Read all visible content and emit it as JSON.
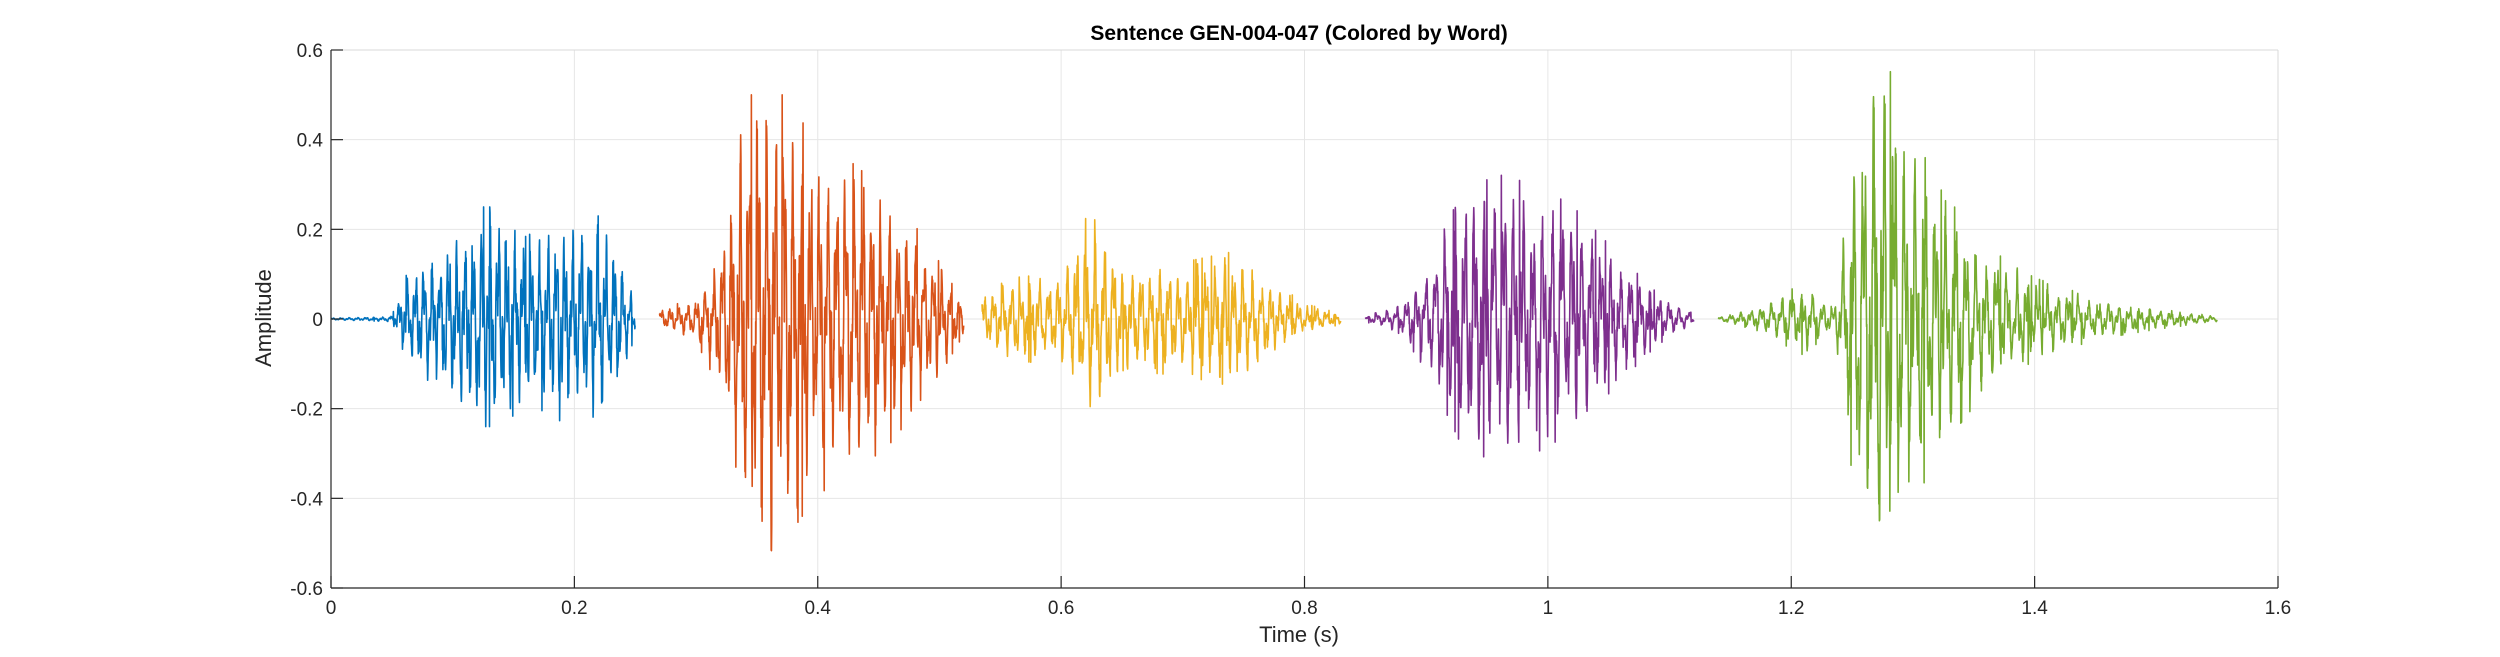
{
  "chart_data": {
    "type": "line",
    "title": "Sentence GEN-004-047 (Colored by Word)",
    "xlabel": "Time (s)",
    "ylabel": "Amplitude",
    "xlim": [
      0,
      1.6
    ],
    "ylim": [
      -0.6,
      0.6
    ],
    "xticks": [
      0,
      0.2,
      0.4,
      0.6,
      0.8,
      1,
      1.2,
      1.4,
      1.6
    ],
    "xtick_labels": [
      "0",
      "0.2",
      "0.4",
      "0.6",
      "0.8",
      "1",
      "1.2",
      "1.4",
      "1.6"
    ],
    "yticks": [
      -0.6,
      -0.4,
      -0.2,
      0,
      0.2,
      0.4,
      0.6
    ],
    "ytick_labels": [
      "-0.6",
      "-0.4",
      "-0.2",
      "0",
      "0.2",
      "0.4",
      "0.6"
    ],
    "grid": true,
    "legend": "none",
    "series": [
      {
        "color": "#0072BD",
        "x_range": [
          0.0,
          0.25
        ],
        "envelope": [
          [
            0.0,
            0.002
          ],
          [
            0.05,
            0.005
          ],
          [
            0.06,
            0.08
          ],
          [
            0.08,
            0.13
          ],
          [
            0.11,
            0.18
          ],
          [
            0.13,
            0.24
          ],
          [
            0.16,
            0.16
          ],
          [
            0.19,
            0.2
          ],
          [
            0.22,
            0.2
          ],
          [
            0.235,
            0.15
          ],
          [
            0.25,
            0.03
          ]
        ],
        "peak_max": 0.25,
        "peak_min": -0.24
      },
      {
        "color": "#D95319",
        "x_range": [
          0.27,
          0.52
        ],
        "envelope": [
          [
            0.27,
            0.02
          ],
          [
            0.3,
            0.04
          ],
          [
            0.32,
            0.15
          ],
          [
            0.34,
            0.42
          ],
          [
            0.355,
            0.5
          ],
          [
            0.37,
            0.44
          ],
          [
            0.4,
            0.34
          ],
          [
            0.43,
            0.3
          ],
          [
            0.46,
            0.24
          ],
          [
            0.49,
            0.15
          ],
          [
            0.51,
            0.07
          ],
          [
            0.52,
            0.03
          ]
        ],
        "peak_max": 0.5,
        "peak_min": -0.57
      },
      {
        "color": "#EDB120",
        "x_range": [
          0.535,
          0.83
        ],
        "envelope": [
          [
            0.535,
            0.05
          ],
          [
            0.56,
            0.08
          ],
          [
            0.6,
            0.09
          ],
          [
            0.625,
            0.22
          ],
          [
            0.65,
            0.1
          ],
          [
            0.7,
            0.11
          ],
          [
            0.74,
            0.13
          ],
          [
            0.77,
            0.08
          ],
          [
            0.8,
            0.03
          ],
          [
            0.83,
            0.01
          ]
        ],
        "peak_max": 0.24,
        "peak_min": -0.27
      },
      {
        "color": "#7E2F8E",
        "x_range": [
          0.85,
          1.12
        ],
        "envelope": [
          [
            0.85,
            0.005
          ],
          [
            0.88,
            0.03
          ],
          [
            0.9,
            0.1
          ],
          [
            0.93,
            0.25
          ],
          [
            0.96,
            0.28
          ],
          [
            0.99,
            0.26
          ],
          [
            1.02,
            0.22
          ],
          [
            1.06,
            0.12
          ],
          [
            1.09,
            0.05
          ],
          [
            1.12,
            0.01
          ]
        ],
        "peak_max": 0.33,
        "peak_min": -0.35
      },
      {
        "color": "#77AC30",
        "x_range": [
          1.14,
          1.55
        ],
        "envelope": [
          [
            1.14,
            0.005
          ],
          [
            1.17,
            0.02
          ],
          [
            1.21,
            0.07
          ],
          [
            1.235,
            0.02
          ],
          [
            1.25,
            0.3
          ],
          [
            1.27,
            0.56
          ],
          [
            1.29,
            0.42
          ],
          [
            1.32,
            0.26
          ],
          [
            1.36,
            0.14
          ],
          [
            1.4,
            0.08
          ],
          [
            1.45,
            0.04
          ],
          [
            1.5,
            0.02
          ],
          [
            1.55,
            0.005
          ]
        ],
        "peak_max": 0.6,
        "peak_min": -0.52
      }
    ]
  }
}
